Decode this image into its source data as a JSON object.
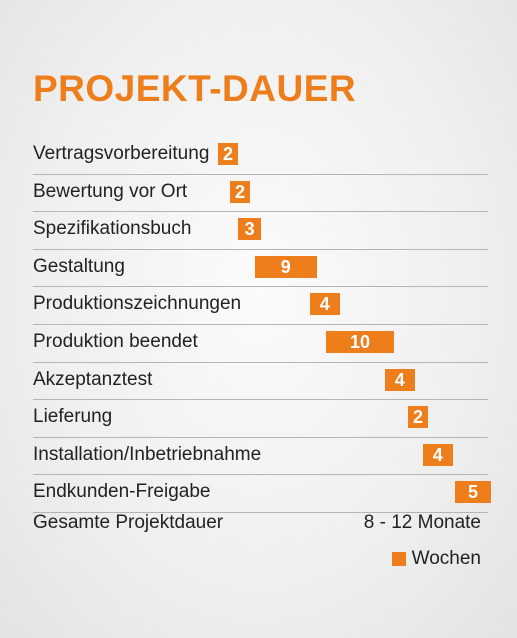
{
  "chart_data": {
    "type": "bar",
    "title": "PROJEKT-DAUER",
    "categories": [
      "Vertragsvorbereitung",
      "Bewertung vor Ort",
      "Spezifikationsbuch",
      "Gestaltung",
      "Produktionszeichnungen",
      "Produktion beendet",
      "Akzeptanztest",
      "Lieferung",
      "Installation/Inbetriebnahme",
      "Endkunden-Freigabe"
    ],
    "values": [
      2,
      2,
      3,
      9,
      4,
      10,
      4,
      2,
      4,
      5
    ],
    "unit_label": "Wochen",
    "total_label": "Gesamte Projektdauer",
    "total_value": "8 - 12 Monate",
    "colors": {
      "bar": "#ee7d1b",
      "bar_text": "#ffffff",
      "title": "#ee7d1b"
    },
    "legend": "bottom-right"
  }
}
